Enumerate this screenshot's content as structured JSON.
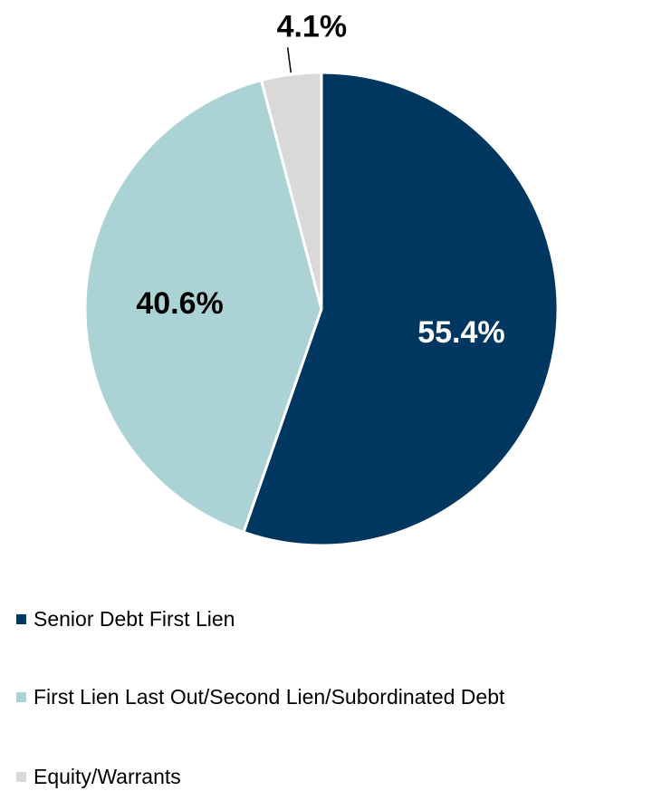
{
  "chart_data": {
    "type": "pie",
    "title": "",
    "start_angle_deg": 0,
    "direction": "clockwise",
    "legend_position": "bottom-left",
    "slices": [
      {
        "name": "Senior Debt First Lien",
        "value": 55.4,
        "label": "55.4%",
        "color": "#003761",
        "label_color": "#ffffff",
        "label_position": "inside"
      },
      {
        "name": "First Lien Last Out/Second Lien/Subordinated Debt",
        "value": 40.6,
        "label": "40.6%",
        "color": "#abd2d5",
        "label_color": "#000000",
        "label_position": "inside"
      },
      {
        "name": "Equity/Warrants",
        "value": 4.1,
        "label": "4.1%",
        "color": "#d9d9d9",
        "label_color": "#000000",
        "label_position": "outside"
      }
    ]
  }
}
